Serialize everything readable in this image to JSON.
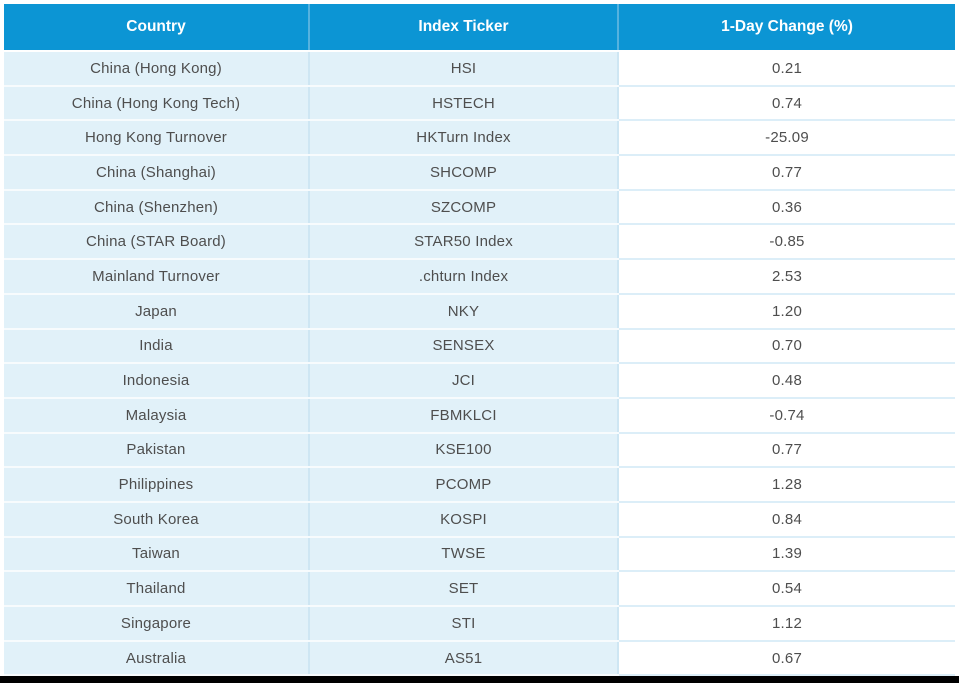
{
  "table": {
    "columns": [
      "Country",
      "Index Ticker",
      "1-Day Change (%)"
    ],
    "rows": [
      {
        "country": "China (Hong Kong)",
        "ticker": "HSI",
        "change": "0.21"
      },
      {
        "country": "China (Hong Kong Tech)",
        "ticker": "HSTECH",
        "change": "0.74"
      },
      {
        "country": "Hong Kong Turnover",
        "ticker": "HKTurn Index",
        "change": "-25.09"
      },
      {
        "country": "China (Shanghai)",
        "ticker": "SHCOMP",
        "change": "0.77"
      },
      {
        "country": "China (Shenzhen)",
        "ticker": "SZCOMP",
        "change": "0.36"
      },
      {
        "country": "China (STAR Board)",
        "ticker": "STAR50 Index",
        "change": "-0.85"
      },
      {
        "country": "Mainland Turnover",
        "ticker": ".chturn Index",
        "change": "2.53"
      },
      {
        "country": "Japan",
        "ticker": "NKY",
        "change": "1.20"
      },
      {
        "country": "India",
        "ticker": "SENSEX",
        "change": "0.70"
      },
      {
        "country": "Indonesia",
        "ticker": "JCI",
        "change": "0.48"
      },
      {
        "country": "Malaysia",
        "ticker": "FBMKLCI",
        "change": "-0.74"
      },
      {
        "country": "Pakistan",
        "ticker": "KSE100",
        "change": "0.77"
      },
      {
        "country": "Philippines",
        "ticker": "PCOMP",
        "change": "1.28"
      },
      {
        "country": "South Korea",
        "ticker": "KOSPI",
        "change": "0.84"
      },
      {
        "country": "Taiwan",
        "ticker": "TWSE",
        "change": "1.39"
      },
      {
        "country": "Thailand",
        "ticker": "SET",
        "change": "0.54"
      },
      {
        "country": "Singapore",
        "ticker": "STI",
        "change": "1.12"
      },
      {
        "country": "Australia",
        "ticker": "AS51",
        "change": "0.67"
      }
    ]
  },
  "colors": {
    "header_bg": "#0c95d4",
    "header_text": "#ffffff",
    "header_divider": "#55b2df",
    "row_bg_blue": "#e1f1f9",
    "row_bg_white": "#ffffff",
    "row_divider_white": "#f7fbfd",
    "row_divider_blue": "#dceef8",
    "column_divider": "#cee6f3",
    "cell_text": "#4e4e4e",
    "bottom_bar": "#000000"
  },
  "chart_data": {
    "type": "table",
    "title": "",
    "columns": [
      "Country",
      "Index Ticker",
      "1-Day Change (%)"
    ],
    "rows": [
      [
        "China (Hong Kong)",
        "HSI",
        0.21
      ],
      [
        "China (Hong Kong Tech)",
        "HSTECH",
        0.74
      ],
      [
        "Hong Kong Turnover",
        "HKTurn Index",
        -25.09
      ],
      [
        "China (Shanghai)",
        "SHCOMP",
        0.77
      ],
      [
        "China (Shenzhen)",
        "SZCOMP",
        0.36
      ],
      [
        "China (STAR Board)",
        "STAR50 Index",
        -0.85
      ],
      [
        "Mainland Turnover",
        ".chturn Index",
        2.53
      ],
      [
        "Japan",
        "NKY",
        1.2
      ],
      [
        "India",
        "SENSEX",
        0.7
      ],
      [
        "Indonesia",
        "JCI",
        0.48
      ],
      [
        "Malaysia",
        "FBMKLCI",
        -0.74
      ],
      [
        "Pakistan",
        "KSE100",
        0.77
      ],
      [
        "Philippines",
        "PCOMP",
        1.28
      ],
      [
        "South Korea",
        "KOSPI",
        0.84
      ],
      [
        "Taiwan",
        "TWSE",
        1.39
      ],
      [
        "Thailand",
        "SET",
        0.54
      ],
      [
        "Singapore",
        "STI",
        1.12
      ],
      [
        "Australia",
        "AS51",
        0.67
      ]
    ]
  }
}
